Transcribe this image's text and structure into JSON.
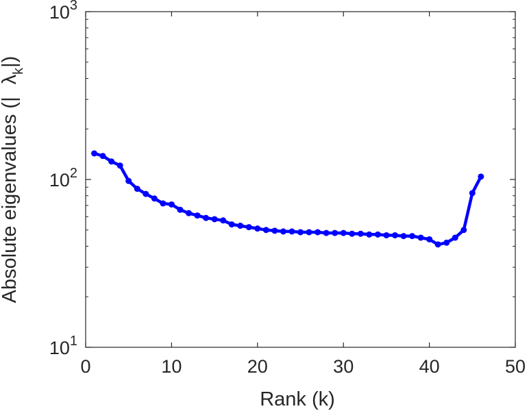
{
  "chart_data": {
    "type": "line",
    "xlabel": "Rank (k)",
    "ylabel": {
      "prefix": "Absolute eigenvalues (|",
      "symbol": "λ",
      "subscript": "k",
      "suffix": "|)"
    },
    "xlim": [
      0,
      50
    ],
    "ylim": [
      10,
      1000
    ],
    "yscale": "log",
    "xticks": [
      0,
      10,
      20,
      30,
      40,
      50
    ],
    "yticks": [
      {
        "value": 10,
        "base": "10",
        "exponent": "1"
      },
      {
        "value": 100,
        "base": "10",
        "exponent": "2"
      },
      {
        "value": 1000,
        "base": "10",
        "exponent": "3"
      }
    ],
    "grid": false,
    "series": [
      {
        "color": "#0000ff",
        "marker": "circle",
        "x": [
          1,
          2,
          3,
          4,
          5,
          6,
          7,
          8,
          9,
          10,
          11,
          12,
          13,
          14,
          15,
          16,
          17,
          18,
          19,
          20,
          21,
          22,
          23,
          24,
          25,
          26,
          27,
          28,
          29,
          30,
          31,
          32,
          33,
          34,
          35,
          36,
          37,
          38,
          39,
          40,
          41,
          42,
          43,
          44,
          45,
          46
        ],
        "y": [
          143,
          138,
          128,
          121,
          98,
          88,
          82,
          77,
          72,
          71,
          66,
          63,
          61,
          59,
          58,
          57,
          54,
          53,
          52,
          51,
          50,
          49.5,
          49,
          49,
          48.5,
          48.5,
          48.5,
          48,
          48,
          48,
          47.5,
          47.5,
          47,
          47,
          46.5,
          46.5,
          46,
          46,
          45,
          44,
          41,
          42,
          45,
          50,
          83,
          104
        ]
      }
    ]
  }
}
